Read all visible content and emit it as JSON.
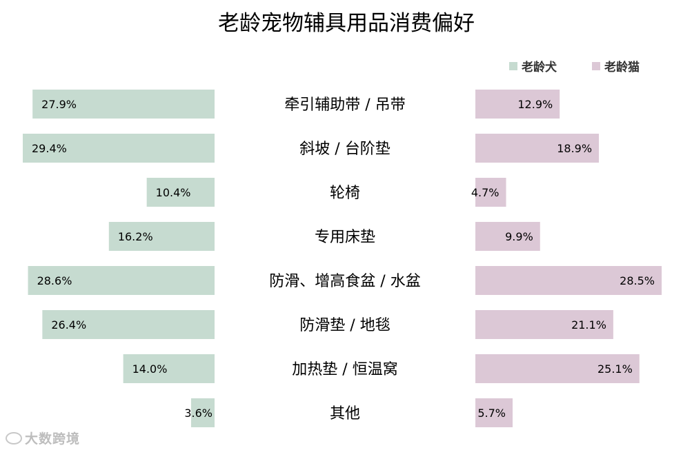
{
  "chart_data": {
    "type": "bar",
    "title": "老龄宠物辅具用品消费偏好",
    "categories": [
      "牵引辅助带 / 吊带",
      "斜坡 / 台阶垫",
      "轮椅",
      "专用床垫",
      "防滑、增高食盆 / 水盆",
      "防滑垫 / 地毯",
      "加热垫 / 恒温窝",
      "其他"
    ],
    "series": [
      {
        "name": "老龄犬",
        "values": [
          27.9,
          29.4,
          10.4,
          16.2,
          28.6,
          26.4,
          14.0,
          3.6
        ],
        "labels": [
          "27.9%",
          "29.4%",
          "10.4%",
          "16.2%",
          "28.6%",
          "26.4%",
          "14.0%",
          "3.6%"
        ],
        "color": "#c6dbd0"
      },
      {
        "name": "老龄猫",
        "values": [
          12.9,
          18.9,
          4.7,
          9.9,
          28.5,
          21.1,
          25.1,
          5.7
        ],
        "labels": [
          "12.9%",
          "18.9%",
          "4.7%",
          "9.9%",
          "28.5%",
          "21.1%",
          "25.1%",
          "5.7%"
        ],
        "color": "#dcc8d6"
      }
    ],
    "legend_position": "top-right",
    "grid": false
  },
  "watermark": "大数跨境"
}
